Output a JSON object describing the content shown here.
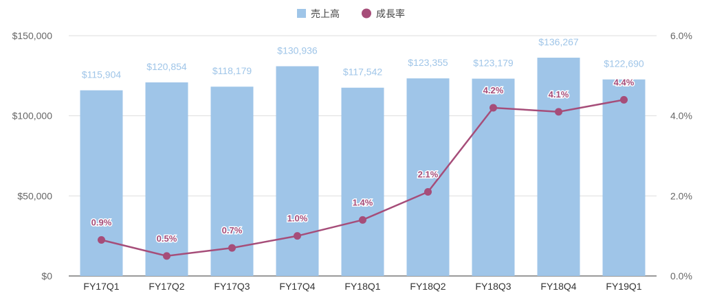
{
  "chart_data": {
    "type": "bar",
    "categories": [
      "FY17Q1",
      "FY17Q2",
      "FY17Q3",
      "FY17Q4",
      "FY18Q1",
      "FY18Q2",
      "FY18Q3",
      "FY18Q4",
      "FY19Q1"
    ],
    "series": [
      {
        "name": "売上高",
        "type": "bar",
        "axis": "left",
        "color": "#9fc5e8",
        "label_color": "#9fc5e8",
        "values": [
          115904,
          120854,
          118179,
          130936,
          117542,
          123355,
          123179,
          136267,
          122690
        ],
        "labels": [
          "$115,904",
          "$120,854",
          "$118,179",
          "$130,936",
          "$117,542",
          "$123,355",
          "$123,179",
          "$136,267",
          "$122,690"
        ]
      },
      {
        "name": "成長率",
        "type": "line",
        "axis": "right",
        "color": "#a64d79",
        "label_color": "#a64d79",
        "values": [
          0.9,
          0.5,
          0.7,
          1.0,
          1.4,
          2.1,
          4.2,
          4.1,
          4.4
        ],
        "labels": [
          "0.9%",
          "0.5%",
          "0.7%",
          "1.0%",
          "1.4%",
          "2.1%",
          "4.2%",
          "4.1%",
          "4.4%"
        ]
      }
    ],
    "y_left": {
      "min": 0,
      "max": 150000,
      "ticks": [
        0,
        50000,
        100000,
        150000
      ],
      "tick_labels": [
        "$0",
        "$50,000",
        "$100,000",
        "$150,000"
      ]
    },
    "y_right": {
      "min": 0,
      "max": 6.0,
      "ticks": [
        0,
        2.0,
        4.0,
        6.0
      ],
      "tick_labels": [
        "0.0%",
        "2.0%",
        "4.0%",
        "6.0%"
      ]
    },
    "grid": true,
    "legend": "top-center",
    "axis_text_color": "#666666",
    "grid_color": "#dddddd"
  }
}
